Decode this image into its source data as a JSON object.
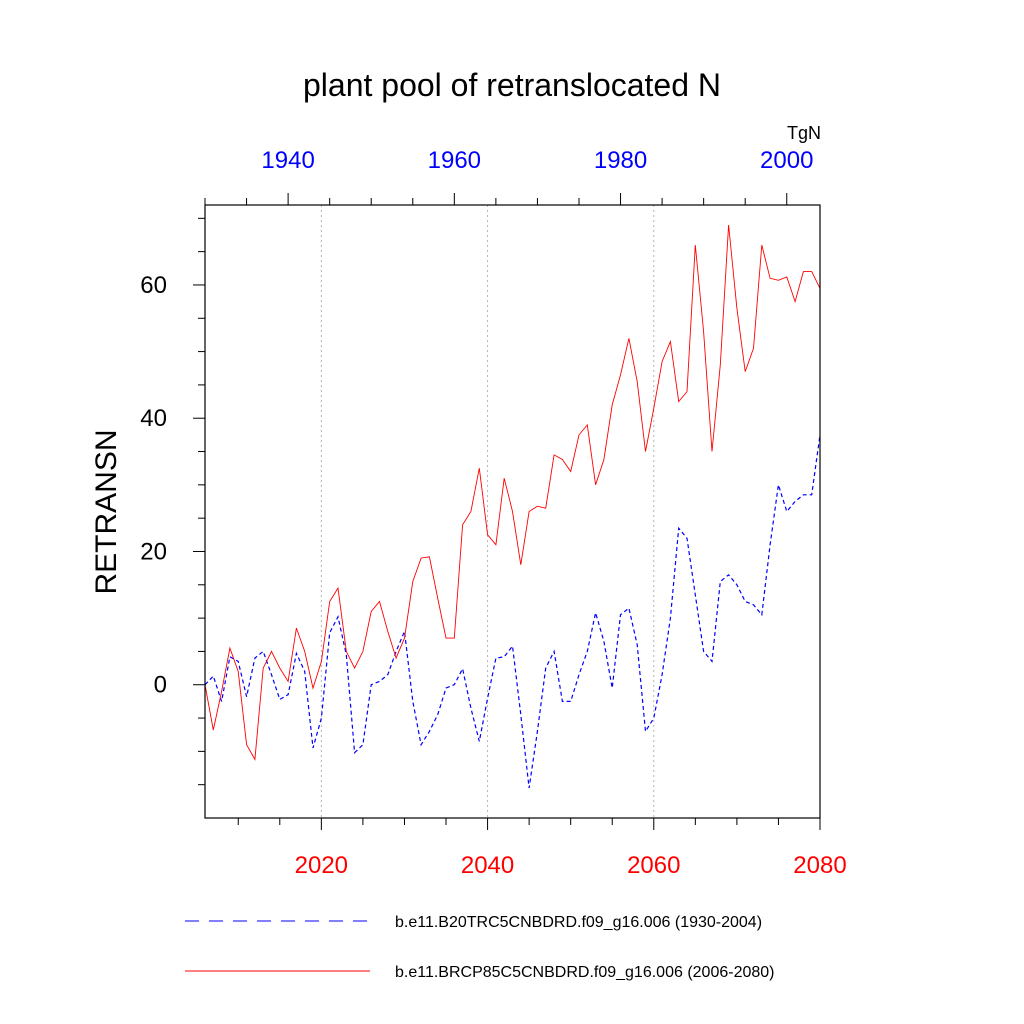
{
  "chart_data": {
    "type": "line",
    "title": "plant pool of retranslocated N",
    "ylabel": "RETRANSN",
    "units": "TgN",
    "ylim": [
      -20,
      72
    ],
    "yticks": [
      0,
      20,
      40,
      60
    ],
    "grid": "vertical dotted at bottom-axis major ticks",
    "bottom_axis": {
      "xlim": [
        2006,
        2080
      ],
      "ticks": [
        2020,
        2040,
        2060,
        2080
      ],
      "color": "#ff0000"
    },
    "top_axis": {
      "xlim": [
        1930,
        2004
      ],
      "ticks": [
        1940,
        1960,
        1980,
        2000
      ],
      "color": "#0000ff"
    },
    "legend": {
      "position": "bottom"
    },
    "series": [
      {
        "name": "b.e11.B20TRC5CNBDRD.f09_g16.006 (1930-2004)",
        "color": "#0000ff",
        "dash": "dashed",
        "x_start": 1930,
        "values": [
          0,
          1.3,
          -2.5,
          4.2,
          3.5,
          -1.8,
          4.0,
          5.0,
          1.5,
          -2.2,
          -1.5,
          4.7,
          2.0,
          -9.5,
          -5.0,
          7.8,
          10.2,
          4.5,
          -10.2,
          -9.0,
          0,
          0.5,
          1.5,
          5.0,
          8.0,
          -2.5,
          -9.0,
          -7.0,
          -4.5,
          -0.5,
          0,
          2.4,
          -3.5,
          -8.5,
          -2.0,
          4.0,
          4.2,
          5.8,
          -4.5,
          -15.5,
          -7.0,
          2.5,
          5.0,
          -2.5,
          -2.5,
          1.5,
          5.0,
          10.8,
          6.5,
          -0.5,
          10.5,
          11.5,
          6.0,
          -7.0,
          -5.0,
          1.5,
          10.0,
          23.5,
          22.0,
          13.5,
          5.0,
          3.5,
          15.5,
          16.5,
          15.0,
          12.5,
          12.0,
          10.5,
          21.0,
          30.0,
          26.0,
          27.5,
          28.5,
          28.5,
          37.5
        ]
      },
      {
        "name": "b.e11.BRCP85C5CNBDRD.f09_g16.006 (2006-2080)",
        "color": "#ff0000",
        "dash": "solid",
        "x_start": 2006,
        "values": [
          0,
          -6.8,
          -1.0,
          5.5,
          2.0,
          -9.0,
          -11.2,
          2.5,
          5.0,
          2.5,
          0.5,
          8.5,
          5.0,
          -0.5,
          3.5,
          12.5,
          14.5,
          5.0,
          2.5,
          5.0,
          11.0,
          12.5,
          8.0,
          4.0,
          7.0,
          15.5,
          19.0,
          19.2,
          13.0,
          7.0,
          7.0,
          24.0,
          26.0,
          32.5,
          22.5,
          21.0,
          31.0,
          26.0,
          18.0,
          26.0,
          26.8,
          26.5,
          34.5,
          33.8,
          32.0,
          37.5,
          39.0,
          30.0,
          33.8,
          42.0,
          46.5,
          52.0,
          45.5,
          35.0,
          41.5,
          48.5,
          51.5,
          42.5,
          44.0,
          66.0,
          53.0,
          35.0,
          48.0,
          69.0,
          56.5,
          47.0,
          50.5,
          66.0,
          61.0,
          60.7,
          61.2,
          57.5,
          62.0,
          62.0,
          59.5
        ]
      }
    ]
  }
}
